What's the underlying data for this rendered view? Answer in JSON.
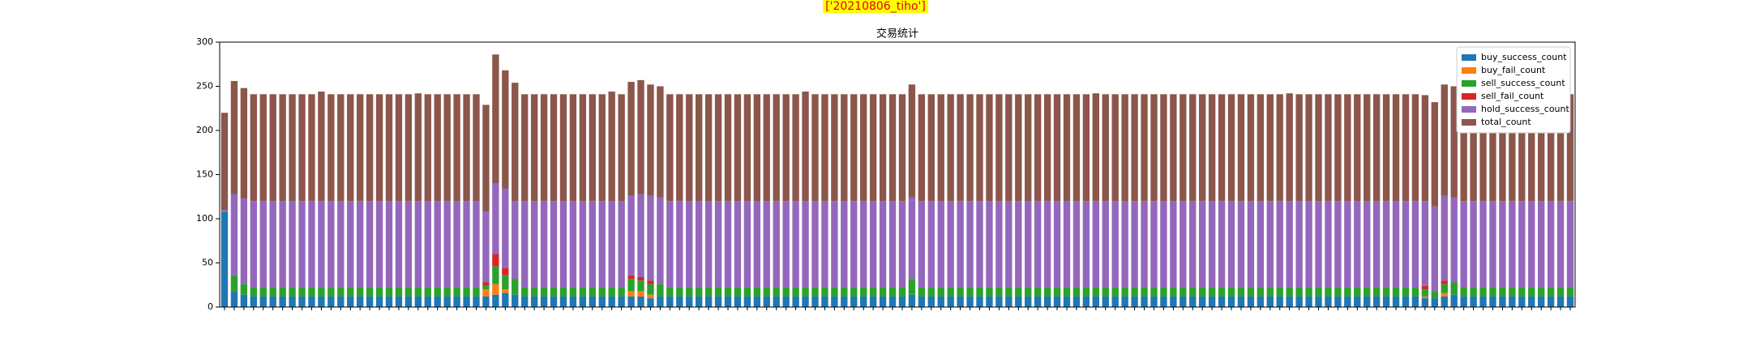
{
  "header": {
    "tag": "['20210806_tiho']"
  },
  "chart_data": {
    "type": "stacked_bar",
    "title": "交易统计",
    "categories": [
      null,
      null,
      null,
      null,
      null,
      null,
      null,
      null,
      null,
      null,
      null,
      null,
      null,
      null,
      null,
      null,
      null,
      null,
      null,
      null,
      null,
      null,
      null,
      null,
      null,
      null,
      null,
      null,
      null,
      null,
      null,
      null,
      null,
      null,
      null,
      null,
      null,
      null,
      null,
      null,
      null,
      null,
      null,
      null,
      null,
      null,
      null,
      null,
      null,
      null,
      null,
      null,
      null,
      null,
      null,
      null,
      null,
      null,
      null,
      null,
      null,
      null,
      null,
      null,
      null,
      null,
      null,
      null,
      null,
      null,
      null,
      null,
      null,
      null,
      null,
      null,
      null,
      null,
      null,
      null,
      null,
      null,
      null,
      null,
      null,
      null,
      null,
      null,
      null,
      null,
      null,
      null,
      null,
      null,
      null,
      null,
      null,
      null,
      null,
      null,
      null,
      null,
      null,
      null,
      null,
      null,
      null,
      null,
      null,
      null,
      null,
      null,
      null,
      null,
      null,
      null,
      null,
      null,
      null,
      null,
      null,
      null,
      null,
      null,
      null,
      null,
      null,
      null,
      null,
      null,
      null,
      null,
      null,
      null,
      null,
      null,
      null,
      null,
      null,
      null
    ],
    "series": [
      {
        "name": "buy_success_count",
        "color": "#1f77b4",
        "values": [
          108,
          18,
          14,
          12,
          12,
          12,
          12,
          12,
          12,
          12,
          12,
          12,
          12,
          12,
          12,
          12,
          12,
          12,
          12,
          12,
          12,
          12,
          12,
          12,
          12,
          12,
          12,
          12,
          14,
          16,
          14,
          12,
          12,
          12,
          12,
          12,
          12,
          12,
          12,
          12,
          12,
          12,
          12,
          12,
          10,
          12,
          12,
          12,
          12,
          12,
          12,
          12,
          12,
          12,
          12,
          12,
          12,
          12,
          12,
          12,
          12,
          12,
          12,
          12,
          12,
          12,
          12,
          12,
          12,
          12,
          12,
          14,
          12,
          12,
          12,
          12,
          12,
          12,
          12,
          12,
          12,
          12,
          12,
          12,
          12,
          12,
          12,
          12,
          12,
          12,
          12,
          12,
          12,
          12,
          12,
          12,
          12,
          12,
          12,
          12,
          12,
          12,
          12,
          12,
          12,
          12,
          12,
          12,
          12,
          12,
          12,
          12,
          12,
          12,
          12,
          12,
          12,
          12,
          12,
          12,
          12,
          12,
          12,
          12,
          10,
          10,
          12,
          14,
          12,
          12,
          12,
          12,
          12,
          12,
          12,
          12,
          12,
          12,
          12,
          12
        ]
      },
      {
        "name": "buy_fail_count",
        "color": "#ff7f0e",
        "values": [
          0,
          0,
          0,
          0,
          0,
          0,
          0,
          0,
          0,
          0,
          0,
          0,
          0,
          0,
          0,
          0,
          0,
          0,
          0,
          0,
          0,
          0,
          0,
          0,
          0,
          0,
          0,
          8,
          12,
          4,
          0,
          0,
          0,
          0,
          0,
          0,
          0,
          0,
          0,
          0,
          0,
          0,
          6,
          6,
          4,
          0,
          0,
          0,
          0,
          0,
          0,
          0,
          0,
          0,
          0,
          0,
          0,
          0,
          0,
          0,
          0,
          0,
          0,
          0,
          0,
          0,
          0,
          0,
          0,
          0,
          0,
          0,
          0,
          0,
          0,
          0,
          0,
          0,
          0,
          0,
          0,
          0,
          0,
          0,
          0,
          0,
          0,
          0,
          0,
          0,
          0,
          0,
          0,
          0,
          0,
          0,
          0,
          0,
          0,
          0,
          0,
          0,
          0,
          0,
          0,
          0,
          0,
          0,
          0,
          0,
          0,
          0,
          0,
          0,
          0,
          0,
          0,
          0,
          0,
          0,
          0,
          0,
          0,
          0,
          2,
          0,
          4,
          0,
          0,
          0,
          0,
          0,
          0,
          0,
          0,
          0,
          0,
          0,
          0,
          0
        ]
      },
      {
        "name": "sell_success_count",
        "color": "#2ca02c",
        "values": [
          0,
          18,
          12,
          10,
          10,
          10,
          10,
          10,
          10,
          10,
          10,
          10,
          10,
          10,
          10,
          10,
          10,
          10,
          10,
          10,
          10,
          10,
          10,
          10,
          10,
          10,
          10,
          4,
          20,
          16,
          18,
          10,
          10,
          10,
          10,
          10,
          10,
          10,
          10,
          10,
          10,
          10,
          14,
          12,
          12,
          14,
          10,
          10,
          10,
          10,
          10,
          10,
          10,
          10,
          10,
          10,
          10,
          10,
          10,
          10,
          10,
          10,
          10,
          10,
          10,
          10,
          10,
          10,
          10,
          10,
          10,
          18,
          10,
          10,
          10,
          10,
          10,
          10,
          10,
          10,
          10,
          10,
          10,
          10,
          10,
          10,
          10,
          10,
          10,
          10,
          10,
          10,
          10,
          10,
          10,
          10,
          10,
          10,
          10,
          10,
          10,
          10,
          10,
          10,
          10,
          10,
          10,
          10,
          10,
          10,
          10,
          10,
          10,
          10,
          10,
          10,
          10,
          10,
          10,
          10,
          10,
          10,
          10,
          10,
          8,
          8,
          10,
          14,
          10,
          10,
          10,
          10,
          10,
          10,
          10,
          10,
          10,
          10,
          10,
          10
        ]
      },
      {
        "name": "sell_fail_count",
        "color": "#d62728",
        "values": [
          0,
          0,
          0,
          0,
          0,
          0,
          0,
          0,
          0,
          0,
          0,
          0,
          0,
          0,
          0,
          0,
          0,
          0,
          0,
          0,
          0,
          0,
          0,
          0,
          0,
          0,
          0,
          4,
          14,
          8,
          0,
          0,
          0,
          0,
          0,
          0,
          0,
          0,
          0,
          0,
          0,
          0,
          4,
          4,
          4,
          0,
          0,
          0,
          0,
          0,
          0,
          0,
          0,
          0,
          0,
          0,
          0,
          0,
          0,
          0,
          0,
          0,
          0,
          0,
          0,
          0,
          0,
          0,
          0,
          0,
          0,
          0,
          0,
          0,
          0,
          0,
          0,
          0,
          0,
          0,
          0,
          0,
          0,
          0,
          0,
          0,
          0,
          0,
          0,
          0,
          0,
          0,
          0,
          0,
          0,
          0,
          0,
          0,
          0,
          0,
          0,
          0,
          0,
          0,
          0,
          0,
          0,
          0,
          0,
          0,
          0,
          0,
          0,
          0,
          0,
          0,
          0,
          0,
          0,
          0,
          0,
          0,
          0,
          0,
          4,
          0,
          4,
          0,
          0,
          0,
          0,
          0,
          0,
          0,
          0,
          0,
          0,
          0,
          0,
          0
        ]
      },
      {
        "name": "hold_success_count",
        "color": "#9467bd",
        "values": [
          2,
          92,
          97,
          98,
          98,
          98,
          98,
          98,
          98,
          98,
          98,
          98,
          98,
          98,
          98,
          98,
          98,
          98,
          98,
          98,
          98,
          98,
          98,
          98,
          98,
          98,
          98,
          80,
          80,
          90,
          88,
          98,
          98,
          98,
          98,
          98,
          98,
          98,
          98,
          98,
          98,
          98,
          90,
          94,
          96,
          98,
          98,
          98,
          98,
          98,
          98,
          98,
          98,
          98,
          98,
          98,
          98,
          98,
          98,
          98,
          98,
          98,
          98,
          98,
          98,
          98,
          98,
          98,
          98,
          98,
          98,
          92,
          98,
          98,
          98,
          98,
          98,
          98,
          98,
          98,
          98,
          98,
          98,
          98,
          98,
          98,
          98,
          98,
          98,
          98,
          98,
          98,
          98,
          98,
          98,
          98,
          98,
          98,
          98,
          98,
          98,
          98,
          98,
          98,
          98,
          98,
          98,
          98,
          98,
          98,
          98,
          98,
          98,
          98,
          98,
          98,
          98,
          98,
          98,
          98,
          98,
          98,
          98,
          98,
          96,
          96,
          96,
          96,
          98,
          98,
          98,
          98,
          98,
          98,
          98,
          98,
          98,
          98,
          98,
          98
        ]
      },
      {
        "name": "total_count",
        "color": "#8c564b",
        "values": [
          110,
          128,
          125,
          121,
          121,
          121,
          121,
          121,
          121,
          121,
          124,
          121,
          121,
          121,
          121,
          121,
          121,
          121,
          121,
          121,
          122,
          121,
          121,
          121,
          121,
          121,
          121,
          121,
          146,
          134,
          134,
          121,
          121,
          121,
          121,
          121,
          121,
          121,
          121,
          121,
          124,
          121,
          129,
          129,
          126,
          126,
          121,
          121,
          121,
          121,
          121,
          121,
          121,
          121,
          121,
          121,
          121,
          121,
          121,
          121,
          124,
          121,
          121,
          121,
          121,
          121,
          121,
          121,
          121,
          121,
          121,
          128,
          121,
          121,
          121,
          121,
          121,
          121,
          121,
          121,
          121,
          121,
          121,
          121,
          121,
          121,
          121,
          121,
          121,
          121,
          122,
          121,
          121,
          121,
          121,
          121,
          121,
          121,
          121,
          121,
          121,
          121,
          121,
          121,
          121,
          121,
          121,
          121,
          121,
          121,
          122,
          121,
          121,
          121,
          121,
          121,
          121,
          121,
          121,
          121,
          121,
          121,
          121,
          121,
          120,
          118,
          126,
          126,
          121,
          121,
          121,
          121,
          121,
          121,
          121,
          121,
          121,
          121,
          121,
          121
        ]
      }
    ],
    "ylim": [
      0,
      300
    ],
    "yticks": [
      0,
      50,
      100,
      150,
      200,
      250,
      300
    ],
    "legend": "upper right"
  }
}
